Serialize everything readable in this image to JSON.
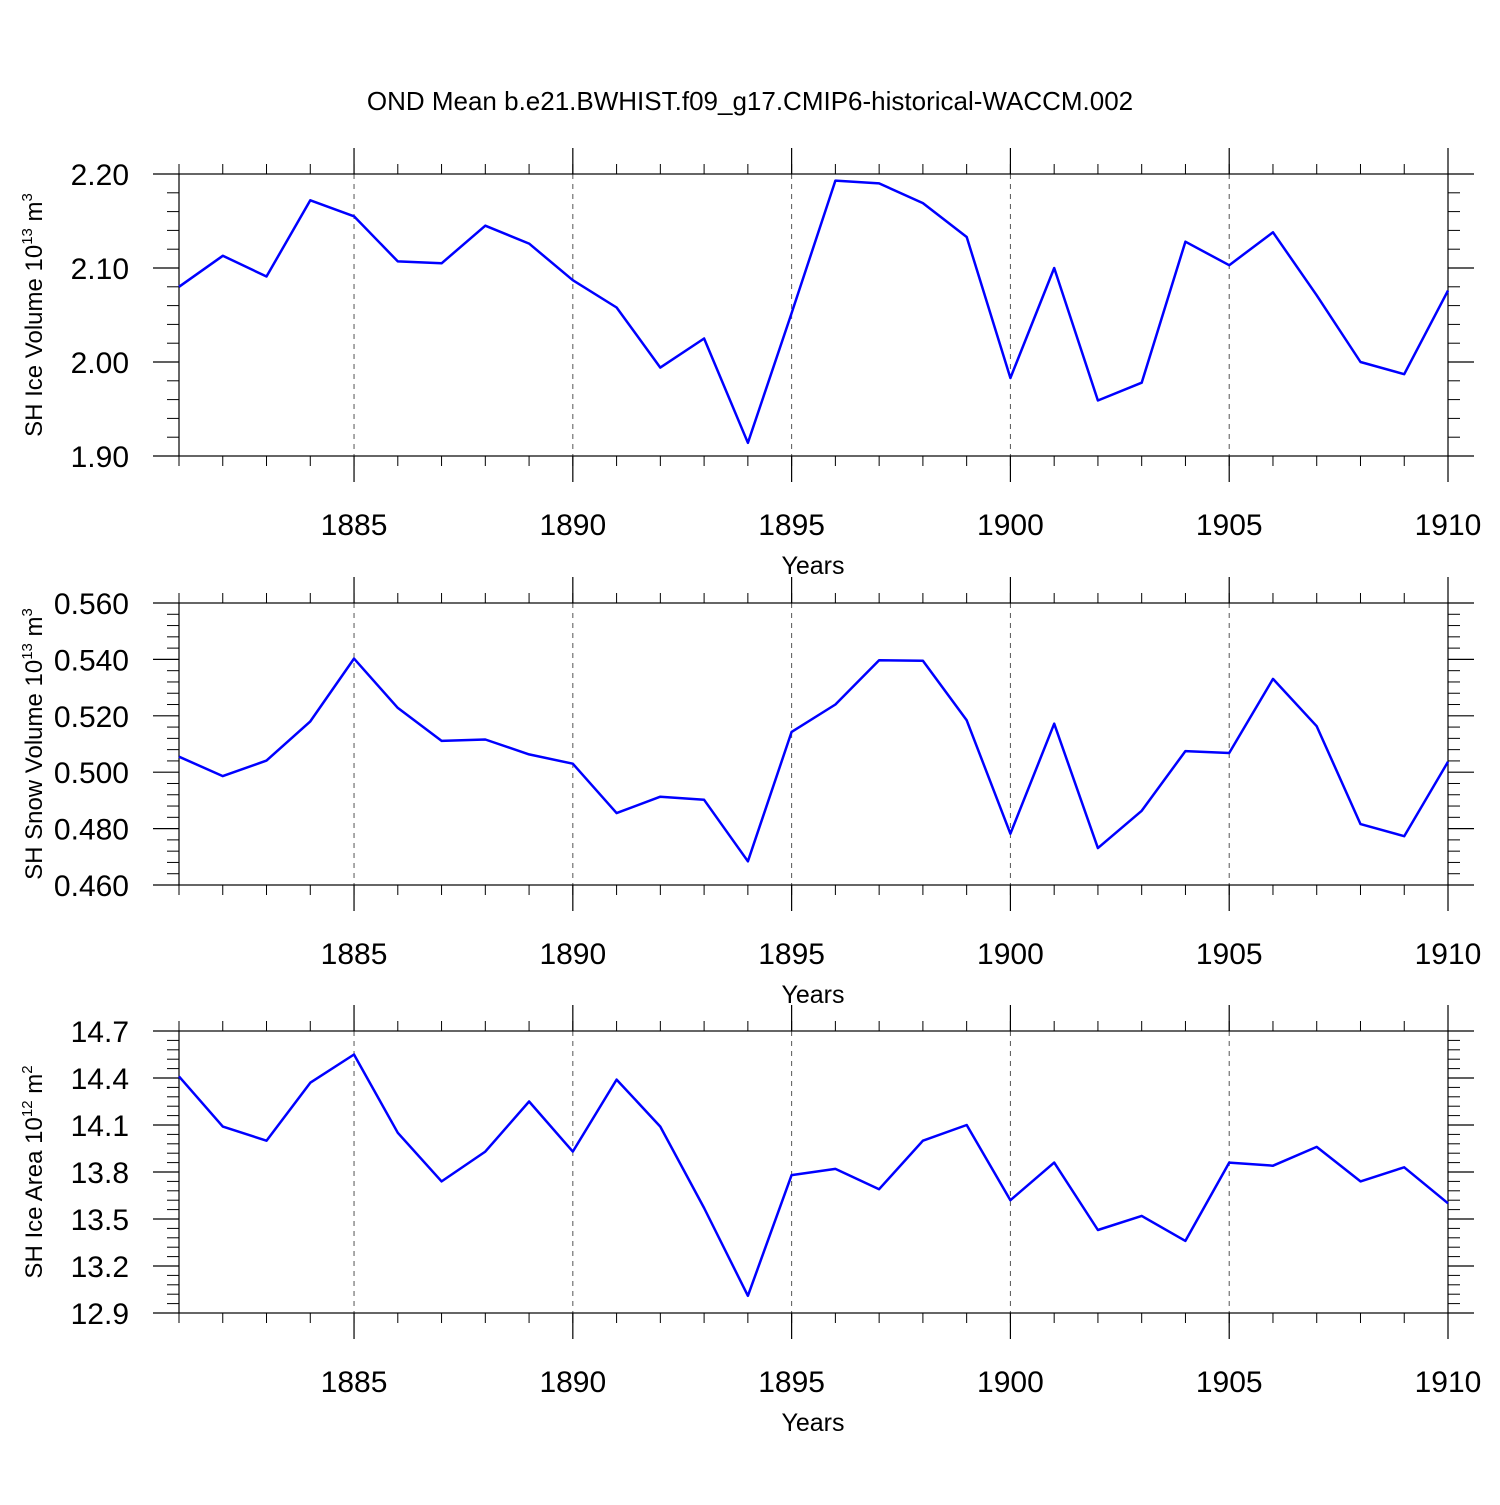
{
  "figure": {
    "title": "OND Mean b.e21.BWHIST.f09_g17.CMIP6-historical-WACCM.002",
    "line_color": "#0000ff"
  },
  "chart_data": [
    {
      "type": "line",
      "ylabel": "SH Ice Volume 10",
      "ylabel_sup": "13",
      "ylabel_unit": "m",
      "ylabel_unit_sup": "3",
      "xlabel": "Years",
      "xlim": [
        1881,
        1910
      ],
      "ylim": [
        1.9,
        2.2
      ],
      "x_ticks": [
        1885,
        1890,
        1895,
        1900,
        1905,
        1910
      ],
      "x_tick_labels": [
        "1885",
        "1890",
        "1895",
        "1900",
        "1905",
        "1910"
      ],
      "y_ticks": [
        1.9,
        2.0,
        2.1,
        2.2
      ],
      "y_tick_labels": [
        "1.90",
        "2.00",
        "2.10",
        "2.20"
      ],
      "grid": "dashed vertical at major x ticks",
      "series": [
        {
          "x": [
            1881,
            1882,
            1883,
            1884,
            1885,
            1886,
            1887,
            1888,
            1889,
            1890,
            1891,
            1892,
            1893,
            1894,
            1895,
            1896,
            1897,
            1898,
            1899,
            1900,
            1901,
            1902,
            1903,
            1904,
            1905,
            1906,
            1907,
            1908,
            1909,
            1910
          ],
          "values": [
            2.08,
            2.113,
            2.091,
            2.172,
            2.155,
            2.107,
            2.105,
            2.145,
            2.126,
            2.087,
            2.058,
            1.994,
            2.025,
            1.914,
            2.052,
            2.193,
            2.19,
            2.169,
            2.133,
            1.983,
            2.1,
            1.959,
            1.978,
            2.128,
            2.103,
            2.138,
            2.071,
            2.0,
            1.987,
            2.076
          ]
        }
      ]
    },
    {
      "type": "line",
      "ylabel": "SH Snow Volume 10",
      "ylabel_sup": "13",
      "ylabel_unit": "m",
      "ylabel_unit_sup": "3",
      "xlabel": "Years",
      "xlim": [
        1881,
        1910
      ],
      "ylim": [
        0.46,
        0.56
      ],
      "x_ticks": [
        1885,
        1890,
        1895,
        1900,
        1905,
        1910
      ],
      "x_tick_labels": [
        "1885",
        "1890",
        "1895",
        "1900",
        "1905",
        "1910"
      ],
      "y_ticks": [
        0.46,
        0.48,
        0.5,
        0.52,
        0.54,
        0.56
      ],
      "y_tick_labels": [
        "0.460",
        "0.480",
        "0.500",
        "0.520",
        "0.540",
        "0.560"
      ],
      "grid": "dashed vertical at major x ticks",
      "series": [
        {
          "x": [
            1881,
            1882,
            1883,
            1884,
            1885,
            1886,
            1887,
            1888,
            1889,
            1890,
            1891,
            1892,
            1893,
            1894,
            1895,
            1896,
            1897,
            1898,
            1899,
            1900,
            1901,
            1902,
            1903,
            1904,
            1905,
            1906,
            1907,
            1908,
            1909,
            1910
          ],
          "values": [
            0.5055,
            0.4986,
            0.5041,
            0.518,
            0.5403,
            0.5228,
            0.5111,
            0.5116,
            0.5063,
            0.503,
            0.4855,
            0.4913,
            0.4902,
            0.4684,
            0.5143,
            0.524,
            0.5397,
            0.5395,
            0.5184,
            0.4782,
            0.5172,
            0.4731,
            0.4863,
            0.5075,
            0.5068,
            0.5331,
            0.5163,
            0.4816,
            0.4773,
            0.5037
          ]
        }
      ]
    },
    {
      "type": "line",
      "ylabel": "SH Ice Area 10",
      "ylabel_sup": "12",
      "ylabel_unit": "m",
      "ylabel_unit_sup": "2",
      "xlabel": "Years",
      "xlim": [
        1881,
        1910
      ],
      "ylim": [
        12.9,
        14.7
      ],
      "x_ticks": [
        1885,
        1890,
        1895,
        1900,
        1905,
        1910
      ],
      "x_tick_labels": [
        "1885",
        "1890",
        "1895",
        "1900",
        "1905",
        "1910"
      ],
      "y_ticks": [
        12.9,
        13.2,
        13.5,
        13.8,
        14.1,
        14.4,
        14.7
      ],
      "y_tick_labels": [
        "12.9",
        "13.2",
        "13.5",
        "13.8",
        "14.1",
        "14.4",
        "14.7"
      ],
      "grid": "dashed vertical at major x ticks",
      "series": [
        {
          "x": [
            1881,
            1882,
            1883,
            1884,
            1885,
            1886,
            1887,
            1888,
            1889,
            1890,
            1891,
            1892,
            1893,
            1894,
            1895,
            1896,
            1897,
            1898,
            1899,
            1900,
            1901,
            1902,
            1903,
            1904,
            1905,
            1906,
            1907,
            1908,
            1909,
            1910
          ],
          "values": [
            14.41,
            14.09,
            14.0,
            14.37,
            14.55,
            14.05,
            13.74,
            13.93,
            14.25,
            13.93,
            14.39,
            14.09,
            13.57,
            13.01,
            13.78,
            13.82,
            13.69,
            14.0,
            14.1,
            13.62,
            13.86,
            13.43,
            13.52,
            13.36,
            13.86,
            13.84,
            13.96,
            13.74,
            13.83,
            13.6
          ]
        }
      ]
    }
  ]
}
